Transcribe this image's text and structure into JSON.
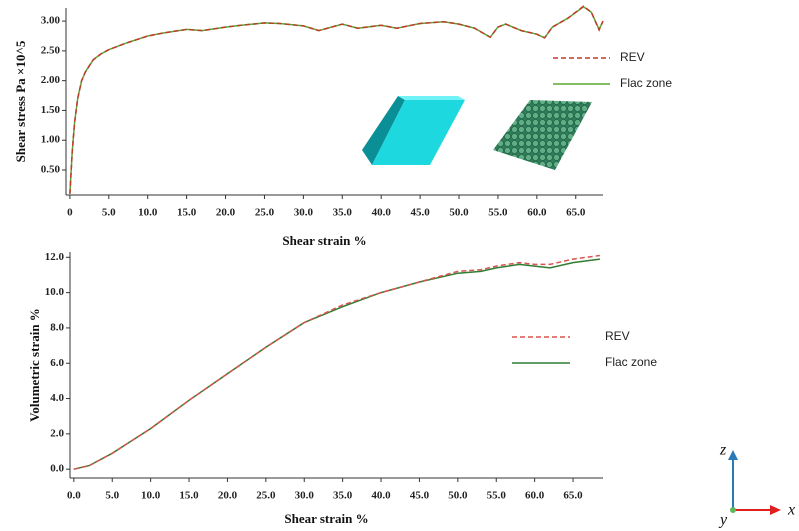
{
  "chart_data": [
    {
      "type": "line",
      "y_label": "Shear stress Pa ×10^5",
      "x_label": "Shear strain %",
      "x": [
        0,
        0.3,
        0.6,
        1,
        1.5,
        2,
        3,
        4,
        5,
        7,
        10,
        12,
        15,
        17,
        20,
        22,
        25,
        27,
        30,
        32,
        35,
        37,
        40,
        42,
        45,
        48,
        50,
        52,
        54,
        55,
        56,
        58,
        60,
        61,
        62,
        64,
        66,
        67,
        68,
        68.5
      ],
      "series": [
        {
          "name": "REV",
          "color": "#c0392b",
          "linestyle": "dashed",
          "values": [
            0.1,
            0.8,
            1.3,
            1.7,
            2.0,
            2.15,
            2.35,
            2.45,
            2.52,
            2.62,
            2.75,
            2.8,
            2.86,
            2.84,
            2.9,
            2.93,
            2.97,
            2.96,
            2.92,
            2.84,
            2.95,
            2.88,
            2.93,
            2.88,
            2.96,
            2.99,
            2.95,
            2.88,
            2.73,
            2.9,
            2.95,
            2.84,
            2.78,
            2.72,
            2.9,
            3.05,
            3.25,
            3.15,
            2.85,
            3.0
          ]
        },
        {
          "name": "Flac zone",
          "color": "#5aa832",
          "linestyle": "solid",
          "values": [
            0.1,
            0.8,
            1.3,
            1.7,
            2.0,
            2.15,
            2.35,
            2.45,
            2.52,
            2.62,
            2.75,
            2.8,
            2.86,
            2.84,
            2.9,
            2.93,
            2.97,
            2.96,
            2.92,
            2.84,
            2.95,
            2.88,
            2.93,
            2.88,
            2.96,
            2.99,
            2.95,
            2.88,
            2.73,
            2.9,
            2.95,
            2.84,
            2.78,
            2.72,
            2.9,
            3.05,
            3.24,
            3.15,
            2.86,
            3.0
          ]
        }
      ],
      "xlim": [
        -0.5,
        68.5
      ],
      "ylim": [
        0.08,
        3.22
      ],
      "xticks": [
        0,
        {
          "value": 5,
          "label": "5.0"
        },
        {
          "value": 10,
          "label": "10.0"
        },
        {
          "value": 15,
          "label": "15.0"
        },
        {
          "value": 20,
          "label": "20.0"
        },
        {
          "value": 25,
          "label": "25.0"
        },
        {
          "value": 30,
          "label": "30.0"
        },
        {
          "value": 35,
          "label": "35.0"
        },
        {
          "value": 40,
          "label": "40.0"
        },
        {
          "value": 45,
          "label": "45.0"
        },
        {
          "value": 50,
          "label": "50.0"
        },
        {
          "value": 55,
          "label": "55.0"
        },
        {
          "value": 60,
          "label": "60.0"
        },
        {
          "value": 65,
          "label": "65.0"
        }
      ],
      "yticks": [
        {
          "value": 0.5,
          "label": "0.50"
        },
        {
          "value": 1,
          "label": "1.00"
        },
        {
          "value": 1.5,
          "label": "1.50"
        },
        {
          "value": 2,
          "label": "2.00"
        },
        {
          "value": 2.5,
          "label": "2.50"
        },
        {
          "value": 3,
          "label": "3.00"
        }
      ],
      "grid": false,
      "legend": "right"
    },
    {
      "type": "line",
      "y_label": "Volumetric strain %",
      "x_label": "Shear strain %",
      "x": [
        0,
        2,
        5,
        10,
        15,
        20,
        25,
        30,
        35,
        40,
        45,
        50,
        53,
        55,
        58,
        60,
        62,
        65,
        68.5
      ],
      "series": [
        {
          "name": "REV",
          "color": "#d9534f",
          "linestyle": "dashed",
          "values": [
            0,
            0.2,
            0.9,
            2.3,
            3.9,
            5.4,
            6.9,
            8.3,
            9.3,
            10.0,
            10.6,
            11.2,
            11.3,
            11.5,
            11.7,
            11.6,
            11.6,
            11.9,
            12.1
          ]
        },
        {
          "name": "Flac zone",
          "color": "#2e7d32",
          "linestyle": "solid",
          "values": [
            0,
            0.2,
            0.9,
            2.3,
            3.9,
            5.4,
            6.9,
            8.3,
            9.2,
            10.0,
            10.6,
            11.1,
            11.2,
            11.4,
            11.6,
            11.5,
            11.4,
            11.7,
            11.9
          ]
        }
      ],
      "xlim": [
        -0.5,
        68.9
      ],
      "ylim": [
        -0.5,
        12.3
      ],
      "xticks": [
        {
          "value": 0,
          "label": "0.0"
        },
        {
          "value": 5,
          "label": "5.0"
        },
        {
          "value": 10,
          "label": "10.0"
        },
        {
          "value": 15,
          "label": "15.0"
        },
        {
          "value": 20,
          "label": "20.0"
        },
        {
          "value": 25,
          "label": "25.0"
        },
        {
          "value": 30,
          "label": "30.0"
        },
        {
          "value": 35,
          "label": "35.0"
        },
        {
          "value": 40,
          "label": "40.0"
        },
        {
          "value": 45,
          "label": "45.0"
        },
        {
          "value": 50,
          "label": "50.0"
        },
        {
          "value": 55,
          "label": "55.0"
        },
        {
          "value": 60,
          "label": "60.0"
        },
        {
          "value": 65,
          "label": "65.0"
        }
      ],
      "yticks": [
        {
          "value": 0,
          "label": "0.0"
        },
        {
          "value": 2,
          "label": "2.0"
        },
        {
          "value": 4,
          "label": "4.0"
        },
        {
          "value": 6,
          "label": "6.0"
        },
        {
          "value": 8,
          "label": "8.0"
        },
        {
          "value": 10,
          "label": "10.0"
        },
        {
          "value": 12,
          "label": "12.0"
        }
      ],
      "grid": false,
      "legend": "right"
    }
  ],
  "triad": {
    "z": "z",
    "y": "y",
    "x": "x"
  }
}
